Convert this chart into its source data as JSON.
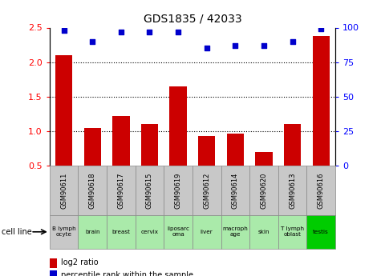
{
  "title": "GDS1835 / 42033",
  "gsm_labels": [
    "GSM90611",
    "GSM90618",
    "GSM90617",
    "GSM90615",
    "GSM90619",
    "GSM90612",
    "GSM90614",
    "GSM90620",
    "GSM90613",
    "GSM90616"
  ],
  "cell_lines": [
    "B lymph\nocyte",
    "brain",
    "breast",
    "cervix",
    "liposarc\noma",
    "liver",
    "macroph\nage",
    "skin",
    "T lymph\noblast",
    "testis"
  ],
  "log2_ratio": [
    2.1,
    1.05,
    1.22,
    1.1,
    1.65,
    0.93,
    0.96,
    0.7,
    1.1,
    2.38
  ],
  "percentile_rank": [
    98,
    90,
    97,
    97,
    97,
    85,
    87,
    87,
    90,
    99
  ],
  "bar_color": "#cc0000",
  "dot_color": "#0000cc",
  "ylim_left": [
    0.5,
    2.5
  ],
  "ylim_right": [
    0,
    100
  ],
  "yticks_left": [
    0.5,
    1.0,
    1.5,
    2.0,
    2.5
  ],
  "yticks_right": [
    0,
    25,
    50,
    75,
    100
  ],
  "cell_line_colors": [
    "#c8c8c8",
    "#aaeaaa",
    "#aaeaaa",
    "#aaeaaa",
    "#aaeaaa",
    "#aaeaaa",
    "#aaeaaa",
    "#aaeaaa",
    "#aaeaaa",
    "#00cc00"
  ],
  "gsm_bg_color": "#c8c8c8",
  "gsm_border_color": "#888888",
  "legend_red_label": "log2 ratio",
  "legend_blue_label": "percentile rank within the sample",
  "cell_line_label": "cell line",
  "dotted_grid_values": [
    1.0,
    1.5,
    2.0
  ],
  "bar_width": 0.6,
  "figsize": [
    4.75,
    3.45
  ],
  "dpi": 100
}
